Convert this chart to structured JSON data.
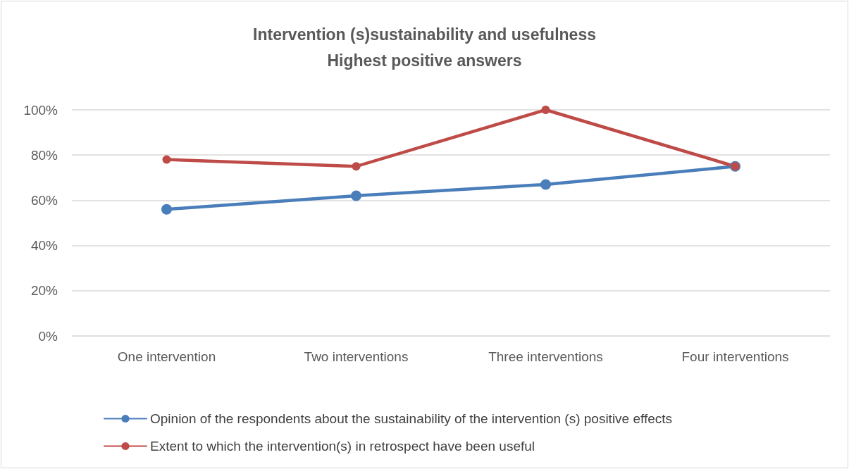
{
  "chart_data": {
    "type": "line",
    "title": "Intervention (s)sustainability and usefulness",
    "subtitle": "Highest positive answers",
    "categories": [
      "One intervention",
      "Two interventions",
      "Three interventions",
      "Four interventions"
    ],
    "series": [
      {
        "name": "Opinion of the respondents about the sustainability of the intervention (s) positive effects",
        "color": "#4a7ebb",
        "values": [
          56,
          62,
          67,
          75
        ]
      },
      {
        "name": "Extent to which the intervention(s) in retrospect have been useful",
        "color": "#be4b48",
        "values": [
          78,
          75,
          100,
          75
        ]
      }
    ],
    "ylim": [
      0,
      100
    ],
    "yticks": [
      {
        "value": 0,
        "label": "0%"
      },
      {
        "value": 20,
        "label": "20%"
      },
      {
        "value": 40,
        "label": "40%"
      },
      {
        "value": 60,
        "label": "60%"
      },
      {
        "value": 80,
        "label": "80%"
      },
      {
        "value": 100,
        "label": "100%"
      }
    ],
    "grid": "y",
    "legend": "bottom",
    "marker": "circle",
    "line_style": "solid"
  }
}
